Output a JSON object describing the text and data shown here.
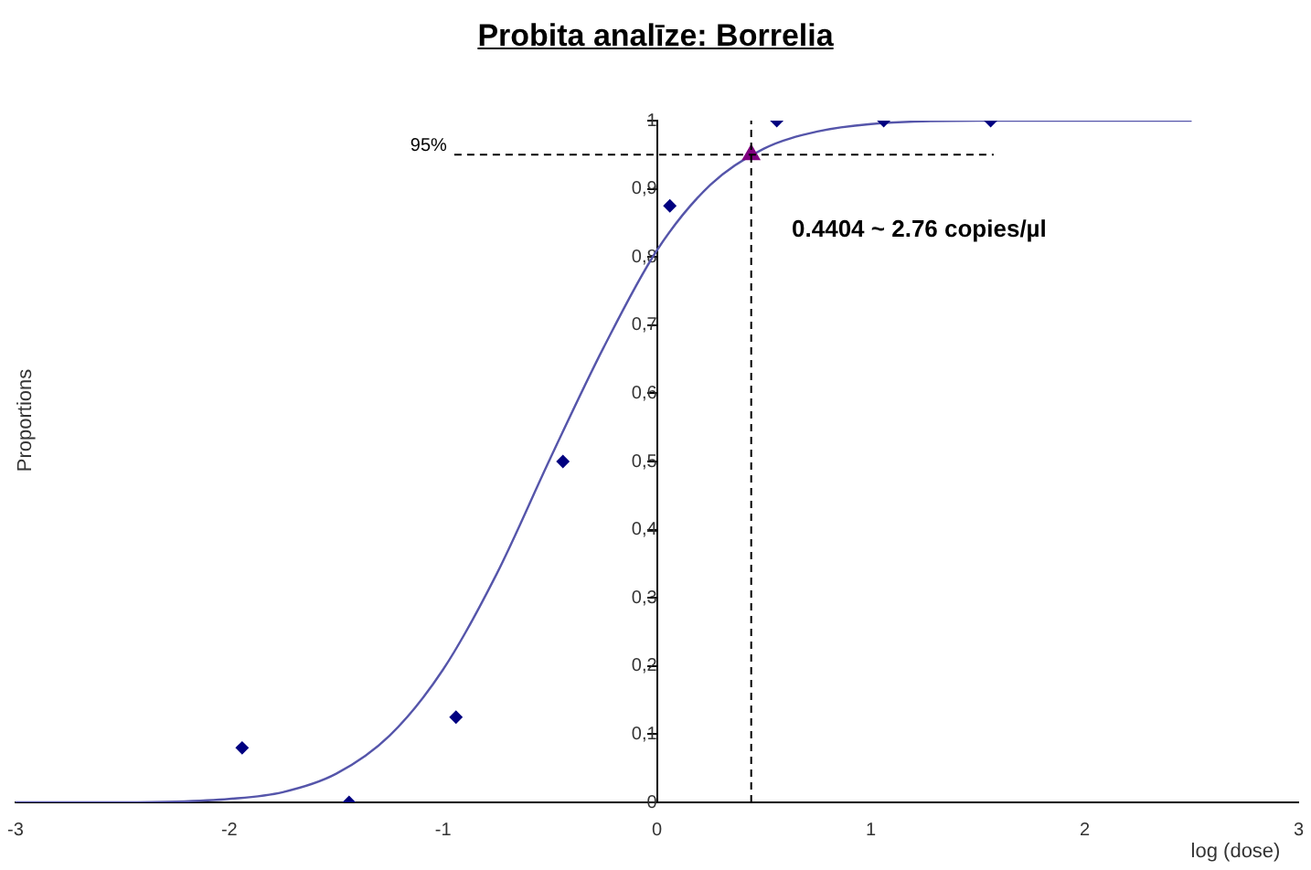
{
  "chart_data": {
    "type": "scatter",
    "title": "Probita analīze: Borrelia",
    "xlabel": "log (dose)",
    "ylabel": "Proportions",
    "xlim": [
      -3,
      3
    ],
    "xticks": [
      -3,
      -2,
      -1,
      0,
      1,
      2,
      3
    ],
    "ylim": [
      0,
      1
    ],
    "yticks": [
      0,
      {
        "value": 0.1,
        "label": "0,1"
      },
      {
        "value": 0.2,
        "label": "0,2"
      },
      {
        "value": 0.3,
        "label": "0,3"
      },
      {
        "value": 0.4,
        "label": "0,4"
      },
      {
        "value": 0.5,
        "label": "0,5"
      },
      {
        "value": 0.6,
        "label": "0,6"
      },
      {
        "value": 0.7,
        "label": "0,7"
      },
      {
        "value": 0.8,
        "label": "0,8"
      },
      {
        "value": 0.9,
        "label": "0,9"
      },
      1
    ],
    "grid": false,
    "legend": false,
    "series": [
      {
        "type": "line",
        "color": "#5555aa",
        "marker": "none",
        "line_style": "solid",
        "x": [
          -3,
          -2.5,
          -2.25,
          -2,
          -1.75,
          -1.5,
          -1.25,
          -1,
          -0.75,
          -0.5,
          -0.25,
          0,
          0.25,
          0.5,
          0.75,
          1,
          1.5,
          2.5
        ],
        "values": [
          0,
          0,
          0.001,
          0.005,
          0.015,
          0.042,
          0.098,
          0.195,
          0.335,
          0.504,
          0.667,
          0.81,
          0.906,
          0.959,
          0.984,
          0.995,
          1,
          1
        ]
      },
      {
        "color": "#000080",
        "marker": "diamond",
        "x": [
          -1.94,
          -1.44,
          -0.94,
          -0.44,
          0.06,
          0.56,
          1.06,
          1.56
        ],
        "values": [
          0.08,
          0,
          0.125,
          0.5,
          0.875,
          1,
          1,
          1
        ]
      },
      {
        "color": "#800080",
        "marker": "triangle",
        "x": [
          0.4404
        ],
        "values": [
          0.95
        ]
      }
    ],
    "ref_lines": [
      {
        "axis": "y",
        "value": 0.95,
        "label": "95%",
        "line_style": "dashed",
        "color": "#000000"
      },
      {
        "axis": "x",
        "value": 0.4404,
        "line_style": "dashed",
        "color": "#000000"
      }
    ],
    "annotations": [
      "0.4404 ~ 2.76 copies/µl"
    ]
  }
}
